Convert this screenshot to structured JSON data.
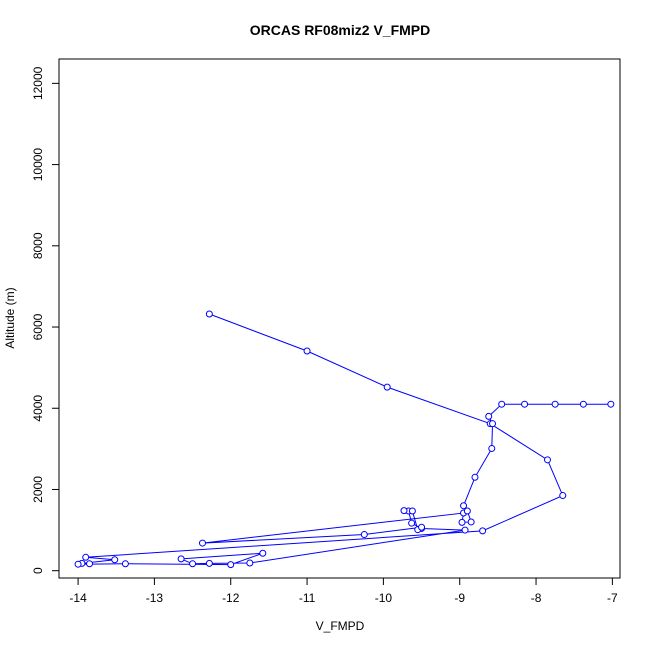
{
  "chart_data": {
    "type": "line",
    "title": "ORCAS RF08miz2 V_FMPD",
    "xlabel": "V_FMPD",
    "ylabel": "Altitude (m)",
    "xlim": [
      -14.25,
      -6.9
    ],
    "ylim": [
      -180,
      12600
    ],
    "xticks": [
      -14,
      -13,
      -12,
      -11,
      -10,
      -9,
      -8,
      -7
    ],
    "yticks": [
      0,
      2000,
      4000,
      6000,
      8000,
      10000,
      12000
    ],
    "line_color": "#0000ff",
    "series": [
      {
        "marker": "open-circle",
        "points": [
          [
            -12.28,
            6320
          ],
          [
            -11.0,
            5410
          ],
          [
            -9.95,
            4520
          ],
          [
            -8.6,
            3620
          ],
          [
            -7.85,
            2730
          ],
          [
            -7.65,
            1850
          ],
          [
            -8.7,
            980
          ],
          [
            -13.9,
            330
          ],
          [
            -13.52,
            270
          ],
          [
            -13.95,
            180
          ],
          [
            -13.85,
            170
          ],
          [
            -14.0,
            160
          ],
          [
            -13.38,
            170
          ],
          [
            -12.0,
            150
          ],
          [
            -11.58,
            430
          ],
          [
            -12.65,
            290
          ],
          [
            -12.5,
            170
          ],
          [
            -12.28,
            180
          ],
          [
            -11.75,
            190
          ],
          [
            -8.93,
            1000
          ],
          [
            -9.5,
            1040
          ],
          [
            -9.63,
            1170
          ],
          [
            -9.67,
            1470
          ],
          [
            -9.73,
            1480
          ],
          [
            -9.62,
            1470
          ],
          [
            -9.55,
            1010
          ],
          [
            -9.5,
            1070
          ],
          [
            -10.25,
            890
          ],
          [
            -12.37,
            680
          ],
          [
            -8.95,
            1420
          ],
          [
            -8.97,
            1190
          ],
          [
            -8.85,
            1200
          ],
          [
            -8.9,
            1470
          ],
          [
            -8.95,
            1600
          ],
          [
            -8.8,
            2300
          ],
          [
            -8.58,
            3010
          ],
          [
            -8.57,
            3620
          ],
          [
            -8.62,
            3800
          ],
          [
            -8.45,
            4100
          ],
          [
            -8.15,
            4100
          ],
          [
            -7.75,
            4100
          ],
          [
            -7.38,
            4100
          ],
          [
            -7.02,
            4100
          ]
        ]
      }
    ]
  }
}
